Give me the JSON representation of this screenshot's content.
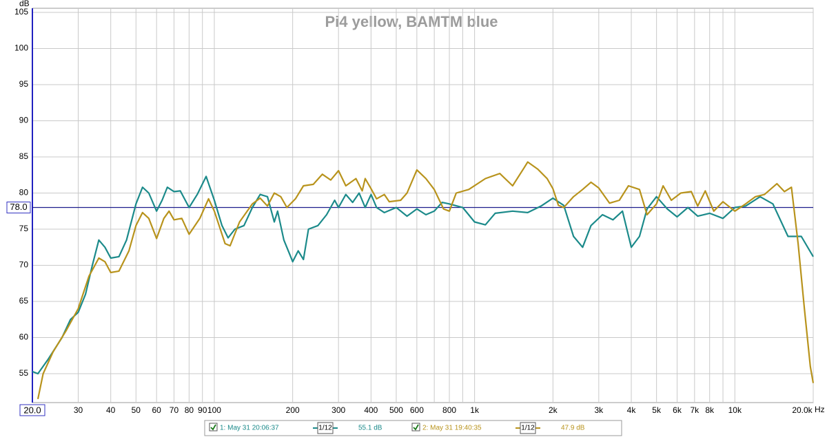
{
  "chart_data": {
    "type": "line",
    "title": "Pi4 yellow, BAMTM blue",
    "y_label": "dB",
    "x_unit": "Hz",
    "log_x": true,
    "grid": true,
    "xlim": [
      20,
      20000
    ],
    "ylim": [
      51,
      105
    ],
    "xticks": [
      {
        "value": 20,
        "label": "20.0"
      },
      30,
      40,
      50,
      60,
      70,
      80,
      90,
      100,
      200,
      300,
      400,
      500,
      600,
      800,
      {
        "value": 1000,
        "label": "1k"
      },
      {
        "value": 2000,
        "label": "2k"
      },
      {
        "value": 3000,
        "label": "3k"
      },
      {
        "value": 4000,
        "label": "4k"
      },
      {
        "value": 5000,
        "label": "5k"
      },
      {
        "value": 6000,
        "label": "6k"
      },
      {
        "value": 7000,
        "label": "7k"
      },
      {
        "value": 8000,
        "label": "8k"
      },
      {
        "value": 10000,
        "label": "10k"
      },
      {
        "value": 20000,
        "label": "20.0k"
      }
    ],
    "x_minor_ticks": [
      700,
      900,
      9000
    ],
    "yticks": [
      55,
      60,
      65,
      70,
      75,
      80,
      85,
      90,
      95,
      100,
      105
    ],
    "reference_line": {
      "value": 78.0,
      "label": "78.0",
      "color": "#1c1c8c"
    },
    "series": [
      {
        "name": "1: May 31 20:06:37",
        "color": "#1b8a8a",
        "smoothing": "1/12",
        "level_label": "55.1 dB",
        "x": [
          20,
          21,
          23,
          26,
          28,
          30,
          32,
          34,
          36,
          38,
          40,
          43,
          46,
          50,
          53,
          56,
          60,
          63,
          66,
          70,
          74,
          80,
          86,
          93,
          100,
          107,
          113,
          120,
          130,
          140,
          150,
          160,
          170,
          175,
          185,
          195,
          200,
          210,
          220,
          230,
          250,
          270,
          290,
          300,
          320,
          340,
          360,
          380,
          400,
          420,
          450,
          500,
          550,
          600,
          650,
          700,
          750,
          800,
          900,
          1000,
          1100,
          1200,
          1400,
          1600,
          1800,
          2000,
          2200,
          2400,
          2600,
          2800,
          3100,
          3400,
          3700,
          4000,
          4300,
          4600,
          5000,
          5500,
          6000,
          6600,
          7200,
          8000,
          9000,
          10000,
          11000,
          12500,
          14000,
          16000,
          18000,
          20000
        ],
        "values": [
          55.3,
          55,
          57,
          60,
          62.5,
          63.5,
          66,
          70,
          73.5,
          72.5,
          71,
          71.2,
          73.5,
          78.5,
          80.8,
          80,
          77.5,
          79,
          80.8,
          80.2,
          80.3,
          78,
          79.8,
          82.3,
          79,
          75.5,
          73.8,
          75,
          75.5,
          78,
          79.8,
          79.5,
          76,
          77.5,
          73.5,
          71.5,
          70.5,
          72,
          70.8,
          75,
          75.5,
          77,
          79,
          78,
          79.8,
          78.7,
          80,
          78,
          79.8,
          78,
          77.3,
          78,
          76.8,
          77.8,
          77,
          77.5,
          78.7,
          78.5,
          78,
          76,
          75.6,
          77.2,
          77.5,
          77.3,
          78.2,
          79.3,
          78.3,
          74,
          72.5,
          75.5,
          77,
          76.3,
          77.5,
          72.5,
          74,
          77.8,
          79.5,
          77.8,
          76.7,
          78,
          76.8,
          77.2,
          76.5,
          78,
          78.2,
          79.5,
          78.5,
          74,
          74,
          71.2
        ]
      },
      {
        "name": "2: May 31 19:40:35",
        "color": "#b8931c",
        "smoothing": "1/12",
        "level_label": "47.9 dB",
        "x": [
          21,
          22,
          24,
          27,
          30,
          33,
          36,
          38,
          40,
          43,
          47,
          50,
          53,
          56,
          60,
          64,
          67,
          70,
          75,
          80,
          88,
          95,
          100,
          110,
          115,
          125,
          140,
          150,
          160,
          170,
          180,
          190,
          205,
          220,
          240,
          260,
          280,
          300,
          320,
          350,
          370,
          380,
          400,
          420,
          450,
          470,
          520,
          550,
          600,
          650,
          700,
          760,
          800,
          850,
          950,
          1100,
          1250,
          1400,
          1550,
          1600,
          1750,
          1900,
          2000,
          2100,
          2200,
          2400,
          2600,
          2800,
          3000,
          3300,
          3600,
          3900,
          4300,
          4600,
          5000,
          5300,
          5700,
          6200,
          6800,
          7200,
          7700,
          8300,
          9000,
          10000,
          11000,
          12000,
          13000,
          14500,
          15500,
          16500,
          17500,
          18500,
          19500,
          20000
        ],
        "values": [
          51.5,
          55,
          58,
          61,
          64,
          68.5,
          71,
          70.5,
          69,
          69.2,
          72,
          75.5,
          77.3,
          76.5,
          73.7,
          76.5,
          77.5,
          76.3,
          76.5,
          74.3,
          76.5,
          79.2,
          77.5,
          73,
          72.7,
          76,
          78.5,
          79.3,
          78.2,
          80,
          79.5,
          78,
          79.2,
          81,
          81.2,
          82.6,
          81.8,
          83.1,
          81,
          82,
          80.3,
          82,
          80.6,
          79.2,
          79.8,
          78.8,
          79,
          80,
          83.2,
          82,
          80.5,
          77.8,
          77.5,
          80,
          80.5,
          82,
          82.7,
          81,
          83.5,
          84.3,
          83.3,
          82,
          80.6,
          78.3,
          78,
          79.5,
          80.5,
          81.5,
          80.7,
          78.6,
          79,
          81,
          80.5,
          77,
          78.5,
          81,
          79,
          80,
          80.2,
          78.2,
          80.3,
          77.5,
          78.8,
          77.5,
          78.5,
          79.5,
          79.8,
          81.3,
          80.2,
          80.8,
          73,
          64,
          56,
          53.7
        ]
      }
    ]
  }
}
